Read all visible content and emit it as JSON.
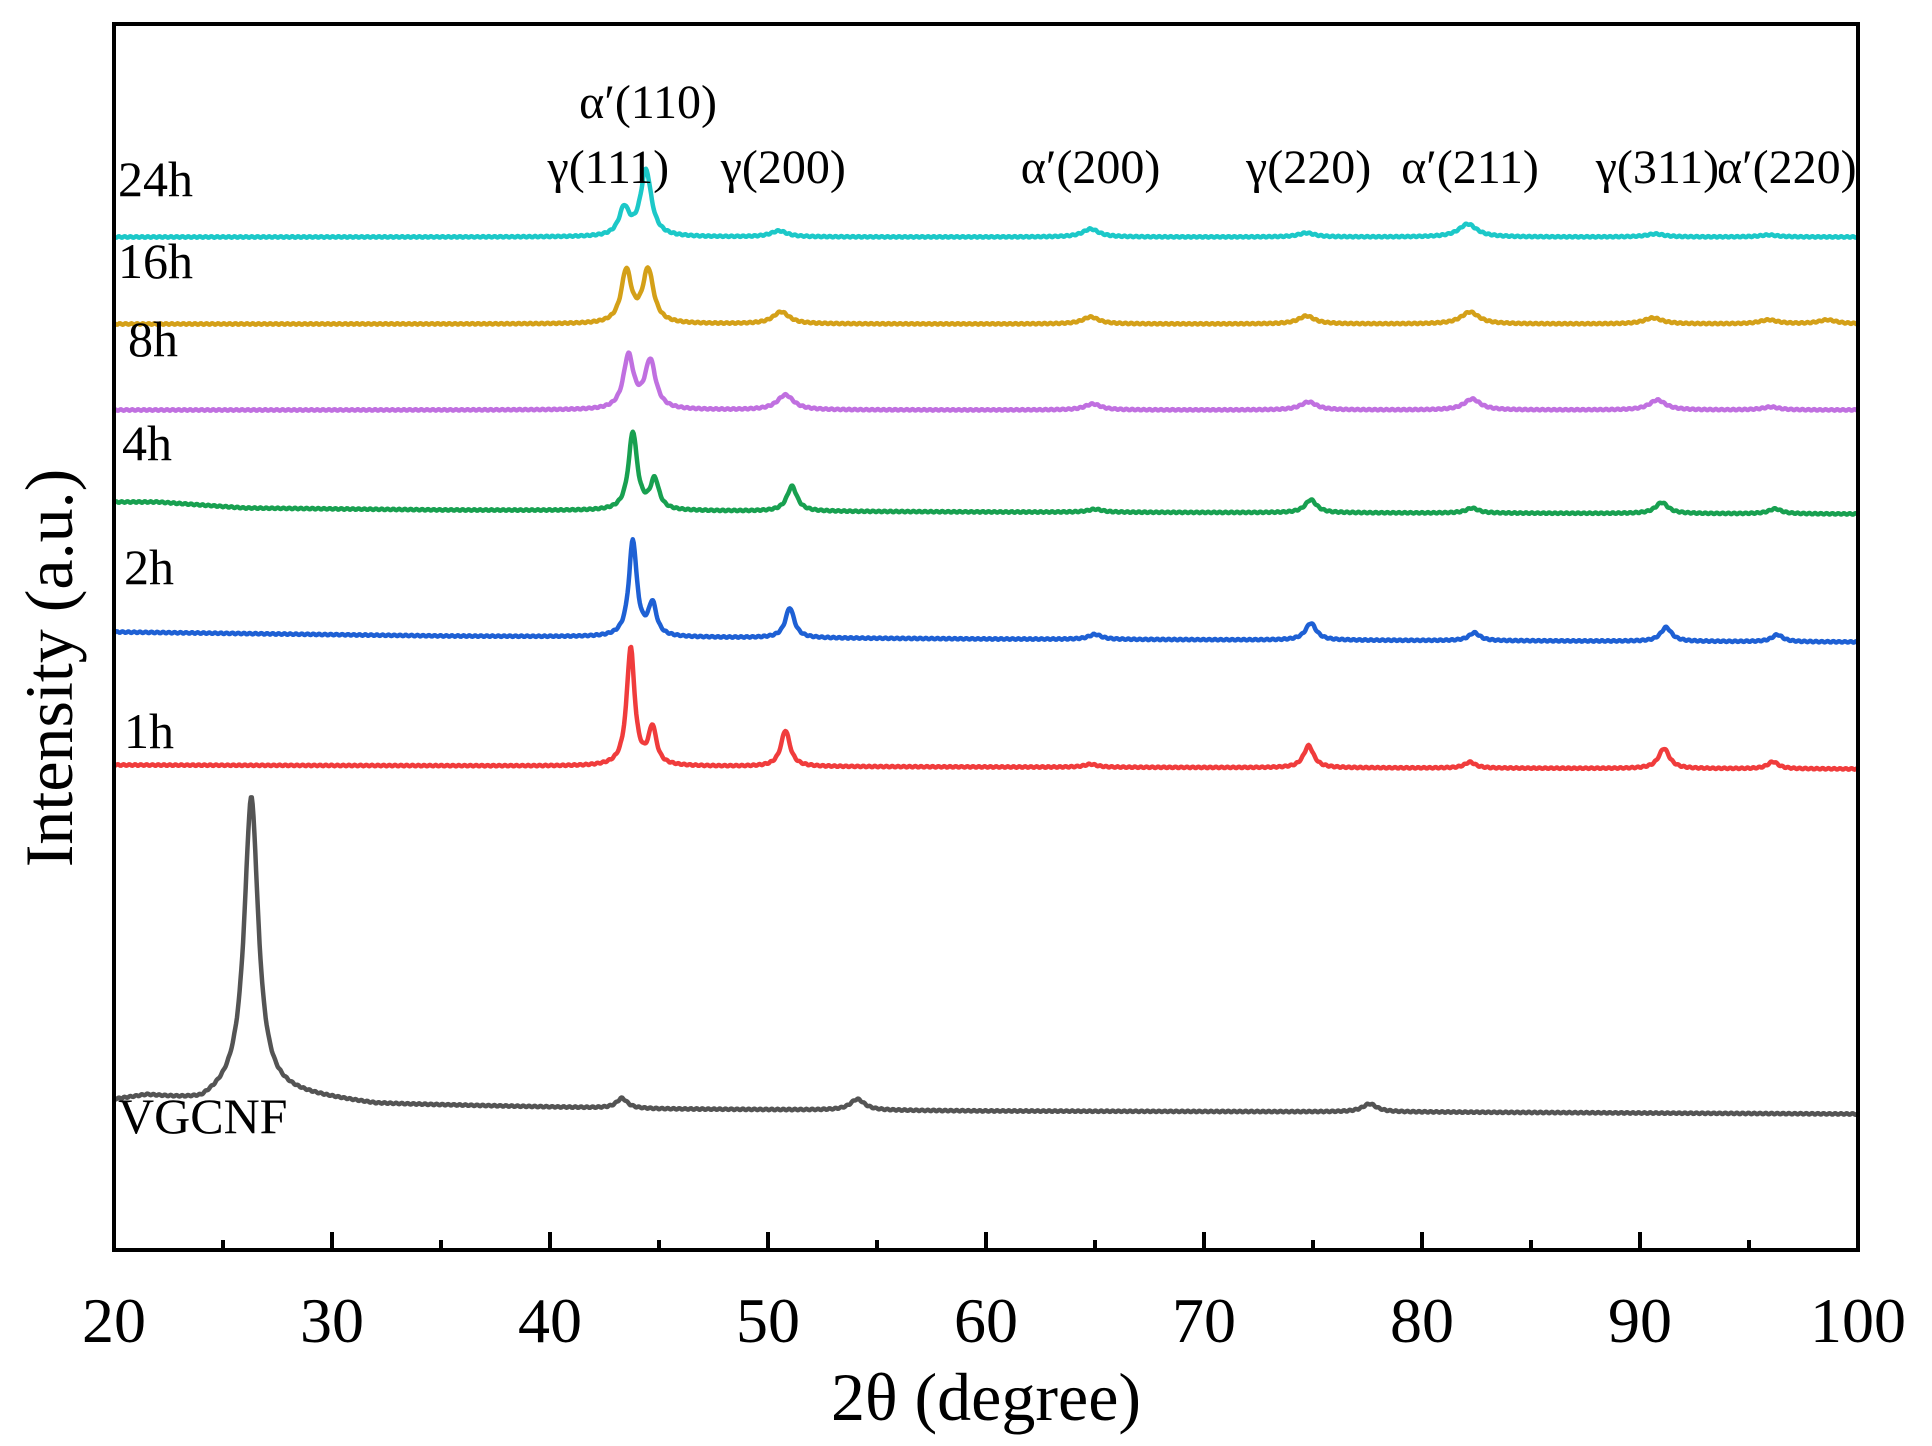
{
  "chart_data": {
    "type": "line",
    "title": "",
    "xlabel": "2θ (degree)",
    "ylabel": "Intensity (a.u.)",
    "xlim": [
      20,
      100
    ],
    "xticks": [
      "20",
      "30",
      "40",
      "50",
      "60",
      "70",
      "80",
      "90",
      "100"
    ],
    "yticks_shown": false,
    "peak_labels": [
      {
        "label": "γ(111)",
        "x": 43.5
      },
      {
        "label": "α′(110)",
        "x": 44.5
      },
      {
        "label": "γ(200)",
        "x": 50.7
      },
      {
        "label": "α′(200)",
        "x": 64.8
      },
      {
        "label": "γ(220)",
        "x": 74.8
      },
      {
        "label": "α′(211)",
        "x": 82.2
      },
      {
        "label": "γ(311)",
        "x": 90.8
      },
      {
        "label": "α′(220)",
        "x": 96.0
      }
    ],
    "series": [
      {
        "name": "VGCNF",
        "label": "VGCNF",
        "color": "#545454",
        "offset": 0,
        "baseline": [
          [
            20,
            14
          ],
          [
            21.5,
            18
          ],
          [
            24,
            12
          ],
          [
            26,
            28
          ],
          [
            27.5,
            22
          ],
          [
            32,
            10
          ],
          [
            45,
            5
          ],
          [
            60,
            3
          ],
          [
            80,
            2
          ],
          [
            100,
            0
          ]
        ],
        "peaks": [
          {
            "x": 26.3,
            "h": 290,
            "w": 0.38
          },
          {
            "x": 43.3,
            "h": 10,
            "w": 0.3
          },
          {
            "x": 54.1,
            "h": 11,
            "w": 0.4
          },
          {
            "x": 77.6,
            "h": 8,
            "w": 0.4
          }
        ]
      },
      {
        "name": "1h",
        "label": "1h",
        "color": "#f03c3c",
        "offset": 345,
        "baseline": [
          [
            20,
            4
          ],
          [
            60,
            2
          ],
          [
            100,
            0
          ]
        ],
        "peaks": [
          {
            "x": 43.7,
            "h": 118,
            "w": 0.22
          },
          {
            "x": 44.7,
            "h": 37,
            "w": 0.22
          },
          {
            "x": 50.8,
            "h": 36,
            "w": 0.25
          },
          {
            "x": 64.8,
            "h": 3,
            "w": 0.35
          },
          {
            "x": 74.8,
            "h": 22,
            "w": 0.28
          },
          {
            "x": 82.2,
            "h": 6,
            "w": 0.3
          },
          {
            "x": 91.1,
            "h": 20,
            "w": 0.3
          },
          {
            "x": 96.1,
            "h": 7,
            "w": 0.3
          }
        ]
      },
      {
        "name": "2h",
        "label": "2h",
        "color": "#1e60d4",
        "offset": 472,
        "baseline": [
          [
            20,
            10
          ],
          [
            35,
            6
          ],
          [
            60,
            3
          ],
          [
            100,
            0
          ]
        ],
        "peaks": [
          {
            "x": 43.8,
            "h": 96,
            "w": 0.22
          },
          {
            "x": 44.7,
            "h": 32,
            "w": 0.22
          },
          {
            "x": 51.0,
            "h": 30,
            "w": 0.25
          },
          {
            "x": 65.0,
            "h": 5,
            "w": 0.35
          },
          {
            "x": 74.9,
            "h": 17,
            "w": 0.3
          },
          {
            "x": 82.4,
            "h": 8,
            "w": 0.3
          },
          {
            "x": 91.2,
            "h": 14,
            "w": 0.3
          },
          {
            "x": 96.3,
            "h": 7,
            "w": 0.3
          }
        ]
      },
      {
        "name": "4h",
        "label": "4h",
        "color": "#18a050",
        "offset": 600,
        "baseline": [
          [
            20,
            12
          ],
          [
            22,
            12
          ],
          [
            26,
            6
          ],
          [
            35,
            4
          ],
          [
            60,
            2
          ],
          [
            100,
            0
          ]
        ],
        "peaks": [
          {
            "x": 43.8,
            "h": 78,
            "w": 0.24
          },
          {
            "x": 44.8,
            "h": 30,
            "w": 0.24
          },
          {
            "x": 51.1,
            "h": 25,
            "w": 0.28
          },
          {
            "x": 65.0,
            "h": 3,
            "w": 0.4
          },
          {
            "x": 74.9,
            "h": 13,
            "w": 0.32
          },
          {
            "x": 82.3,
            "h": 5,
            "w": 0.35
          },
          {
            "x": 91.0,
            "h": 11,
            "w": 0.35
          },
          {
            "x": 96.2,
            "h": 5,
            "w": 0.35
          }
        ]
      },
      {
        "name": "8h",
        "label": "8h",
        "color": "#c070e0",
        "offset": 704,
        "baseline": [
          [
            20,
            0
          ],
          [
            100,
            0
          ]
        ],
        "peaks": [
          {
            "x": 43.6,
            "h": 53,
            "w": 0.28
          },
          {
            "x": 44.6,
            "h": 48,
            "w": 0.3
          },
          {
            "x": 50.8,
            "h": 15,
            "w": 0.45
          },
          {
            "x": 64.9,
            "h": 6,
            "w": 0.45
          },
          {
            "x": 74.8,
            "h": 8,
            "w": 0.45
          },
          {
            "x": 82.3,
            "h": 11,
            "w": 0.45
          },
          {
            "x": 90.8,
            "h": 10,
            "w": 0.45
          },
          {
            "x": 96.0,
            "h": 3,
            "w": 0.45
          }
        ]
      },
      {
        "name": "16h",
        "label": "16h",
        "color": "#d4a018",
        "offset": 790,
        "baseline": [
          [
            20,
            0
          ],
          [
            100,
            0
          ]
        ],
        "peaks": [
          {
            "x": 43.5,
            "h": 52,
            "w": 0.28
          },
          {
            "x": 44.5,
            "h": 53,
            "w": 0.3
          },
          {
            "x": 50.6,
            "h": 12,
            "w": 0.45
          },
          {
            "x": 64.8,
            "h": 7,
            "w": 0.45
          },
          {
            "x": 74.7,
            "h": 8,
            "w": 0.45
          },
          {
            "x": 82.2,
            "h": 12,
            "w": 0.5
          },
          {
            "x": 90.6,
            "h": 6,
            "w": 0.5
          },
          {
            "x": 95.9,
            "h": 4,
            "w": 0.5
          },
          {
            "x": 98.6,
            "h": 4,
            "w": 0.5
          }
        ]
      },
      {
        "name": "24h",
        "label": "24h",
        "color": "#1cc8c8",
        "offset": 877,
        "baseline": [
          [
            20,
            0
          ],
          [
            100,
            0
          ]
        ],
        "peaks": [
          {
            "x": 43.4,
            "h": 27,
            "w": 0.28
          },
          {
            "x": 44.4,
            "h": 66,
            "w": 0.3
          },
          {
            "x": 50.5,
            "h": 6,
            "w": 0.45
          },
          {
            "x": 64.8,
            "h": 8,
            "w": 0.45
          },
          {
            "x": 74.7,
            "h": 4,
            "w": 0.45
          },
          {
            "x": 82.1,
            "h": 13,
            "w": 0.5
          },
          {
            "x": 90.7,
            "h": 3,
            "w": 0.5
          },
          {
            "x": 95.9,
            "h": 2,
            "w": 0.5
          }
        ]
      }
    ]
  }
}
